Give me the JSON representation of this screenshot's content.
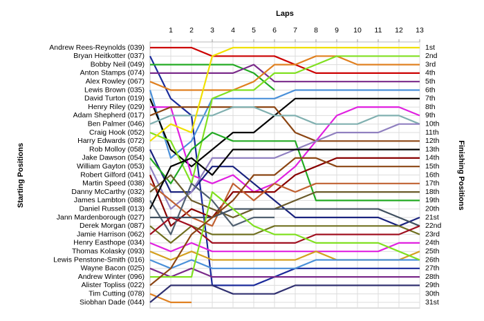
{
  "chart_data": {
    "type": "line",
    "title": "Laps",
    "y_label": "Starting Positions",
    "y2_label": "Finishing Positions",
    "x": [
      0,
      1,
      2,
      3,
      4,
      5,
      6,
      7,
      8,
      9,
      10,
      11,
      12,
      13
    ],
    "xlim": [
      0,
      13
    ],
    "xticks": [
      1,
      2,
      3,
      4,
      5,
      6,
      7,
      8,
      9,
      10,
      11,
      12,
      13
    ],
    "ylim": [
      1,
      31
    ],
    "y_inverted": true,
    "grid": true,
    "finishing_positions": [
      "1st",
      "2nd",
      "3rd",
      "4th",
      "5th",
      "6th",
      "7th",
      "8th",
      "9th",
      "10th",
      "11th",
      "12th",
      "13th",
      "14th",
      "15th",
      "16th",
      "17th",
      "18th",
      "19th",
      "20th",
      "21st",
      "22nd",
      "23rd",
      "24th",
      "25th",
      "26th",
      "27th",
      "28th",
      "29th",
      "30th",
      "31st"
    ],
    "series": [
      {
        "name": "Andrew Rees-Reynolds (039)",
        "color": "#cc0000",
        "values": [
          1,
          1,
          1,
          2,
          2,
          2,
          2,
          3,
          4,
          4,
          4,
          4,
          4,
          4
        ]
      },
      {
        "name": "Bryan Heitkotter (037)",
        "color": "#1a2a9a",
        "values": [
          2,
          7,
          9,
          29,
          29,
          29,
          28,
          27,
          27,
          27,
          27,
          27,
          27,
          27
        ]
      },
      {
        "name": "Bobby Neil (049)",
        "color": "#22aa22",
        "values": [
          3,
          3,
          3,
          3,
          3,
          4,
          6,
          null,
          null,
          null,
          null,
          null,
          null,
          null
        ]
      },
      {
        "name": "Anton Stamps (074)",
        "color": "#7a2a8a",
        "values": [
          4,
          4,
          4,
          4,
          4,
          3,
          5,
          5,
          5,
          5,
          5,
          5,
          5,
          5
        ]
      },
      {
        "name": "Alex Rowley (067)",
        "color": "#e08020",
        "values": [
          5,
          6,
          6,
          6,
          6,
          5,
          3,
          3,
          2,
          2,
          3,
          3,
          3,
          3
        ]
      },
      {
        "name": "Lewis Brown (035)",
        "color": "#4a90d9",
        "values": [
          6,
          14,
          12,
          7,
          7,
          7,
          7,
          6,
          6,
          6,
          6,
          6,
          6,
          6
        ]
      },
      {
        "name": "David Turton (019)",
        "color": "#000000",
        "values": [
          7,
          13,
          15,
          13,
          11,
          11,
          9,
          7,
          7,
          7,
          7,
          7,
          7,
          7
        ]
      },
      {
        "name": "Henry Riley (029)",
        "color": "#e020e0",
        "values": [
          8,
          8,
          16,
          17,
          16,
          18,
          17,
          15,
          12,
          9,
          8,
          8,
          8,
          9
        ]
      },
      {
        "name": "Adam Shepherd (017)",
        "color": "#8b4513",
        "values": [
          9,
          8,
          8,
          8,
          8,
          8,
          8,
          11,
          12,
          12,
          12,
          12,
          12,
          12
        ]
      },
      {
        "name": "Ben Palmer (046)",
        "color": "#80b0b0",
        "values": [
          10,
          9,
          9,
          9,
          8,
          8,
          9,
          9,
          10,
          10,
          10,
          9,
          9,
          10
        ]
      },
      {
        "name": "Craig Hook (052)",
        "color": "#80e020",
        "values": [
          11,
          12,
          17,
          7,
          6,
          6,
          4,
          4,
          3,
          2,
          2,
          2,
          2,
          2
        ]
      },
      {
        "name": "Harry Edwards (072)",
        "color": "#f0e000",
        "values": [
          12,
          10,
          11,
          2,
          1,
          1,
          1,
          1,
          1,
          1,
          1,
          1,
          1,
          1
        ]
      },
      {
        "name": "Rob Molloy (058)",
        "color": "#1a237e",
        "values": [
          13,
          18,
          18,
          15,
          15,
          17,
          19,
          21,
          21,
          21,
          21,
          21,
          22,
          21
        ]
      },
      {
        "name": "Jake Dawson (054)",
        "color": "#22aa22",
        "values": [
          14,
          17,
          13,
          11,
          12,
          12,
          12,
          12,
          19,
          19,
          19,
          19,
          19,
          19
        ]
      },
      {
        "name": "William Gayton (053)",
        "color": "#9080c0",
        "values": [
          15,
          20,
          18,
          14,
          14,
          14,
          14,
          13,
          12,
          11,
          11,
          11,
          10,
          10
        ]
      },
      {
        "name": "Robert Gilford (041)",
        "color": "#880000",
        "values": [
          16,
          22,
          20,
          21,
          18,
          18,
          18,
          16,
          15,
          14,
          14,
          14,
          14,
          14
        ]
      },
      {
        "name": "Martin Speed (038)",
        "color": "#c06030",
        "values": [
          17,
          19,
          21,
          22,
          17,
          19,
          17,
          18,
          17,
          17,
          17,
          17,
          17,
          17
        ]
      },
      {
        "name": "Danny McCarthy (032)",
        "color": "#6a5a2a",
        "values": [
          18,
          16,
          19,
          20,
          21,
          20,
          20,
          19,
          18,
          18,
          18,
          18,
          18,
          18
        ]
      },
      {
        "name": "James Lambton (088)",
        "color": "#506070",
        "values": [
          19,
          23,
          17,
          19,
          22,
          21,
          21,
          null,
          null,
          null,
          null,
          null,
          null,
          null
        ]
      },
      {
        "name": "Daniel Russell (013)",
        "color": "#000000",
        "values": [
          20,
          15,
          14,
          16,
          13,
          13,
          13,
          13,
          13,
          13,
          13,
          13,
          13,
          13
        ]
      },
      {
        "name": "Jann Mardenborough (027)",
        "color": "#405060",
        "values": [
          21,
          21,
          21,
          21,
          20,
          20,
          20,
          20,
          20,
          20,
          20,
          20,
          21,
          22
        ]
      },
      {
        "name": "Derek Morgan (087)",
        "color": "#707020",
        "values": [
          22,
          24,
          22,
          23,
          23,
          23,
          22,
          22,
          22,
          22,
          22,
          22,
          22,
          23
        ]
      },
      {
        "name": "Jamie Harrison (062)",
        "color": "#a01020",
        "values": [
          23,
          21,
          22,
          24,
          24,
          24,
          24,
          24,
          23,
          23,
          23,
          23,
          23,
          22
        ]
      },
      {
        "name": "Henry Easthope (034)",
        "color": "#e020e0",
        "values": [
          24,
          25,
          24,
          25,
          25,
          25,
          25,
          25,
          25,
          25,
          25,
          25,
          24,
          24
        ]
      },
      {
        "name": "Thomas Kolasky (093)",
        "color": "#d4a020",
        "values": [
          25,
          26,
          25,
          26,
          26,
          26,
          26,
          26,
          25,
          26,
          26,
          26,
          26,
          25
        ]
      },
      {
        "name": "Lewis Penstone-Smith (016)",
        "color": "#4a90d9",
        "values": [
          26,
          27,
          26,
          27,
          27,
          27,
          27,
          27,
          26,
          26,
          26,
          26,
          26,
          26
        ]
      },
      {
        "name": "Wayne Bacon (025)",
        "color": "#7a2a8a",
        "values": [
          27,
          28,
          27,
          28,
          28,
          28,
          28,
          28,
          28,
          28,
          28,
          28,
          28,
          28
        ]
      },
      {
        "name": "Andrew Winter (096)",
        "color": "#80e020",
        "values": [
          28,
          28,
          28,
          18,
          20,
          22,
          23,
          23,
          24,
          24,
          24,
          24,
          25,
          26
        ]
      },
      {
        "name": "Alister Topliss (022)",
        "color": "#8b4513",
        "values": [
          29,
          27,
          23,
          21,
          19,
          16,
          16,
          14,
          14,
          15,
          15,
          15,
          15,
          15
        ]
      },
      {
        "name": "Tim Cutting (078)",
        "color": "#e08020",
        "values": [
          30,
          31,
          31,
          null,
          null,
          null,
          null,
          null,
          null,
          null,
          null,
          null,
          null,
          null
        ]
      },
      {
        "name": "Siobhan Dade (044)",
        "color": "#303070",
        "values": [
          31,
          29,
          29,
          29,
          30,
          30,
          30,
          29,
          29,
          29,
          29,
          29,
          29,
          29
        ]
      }
    ]
  }
}
